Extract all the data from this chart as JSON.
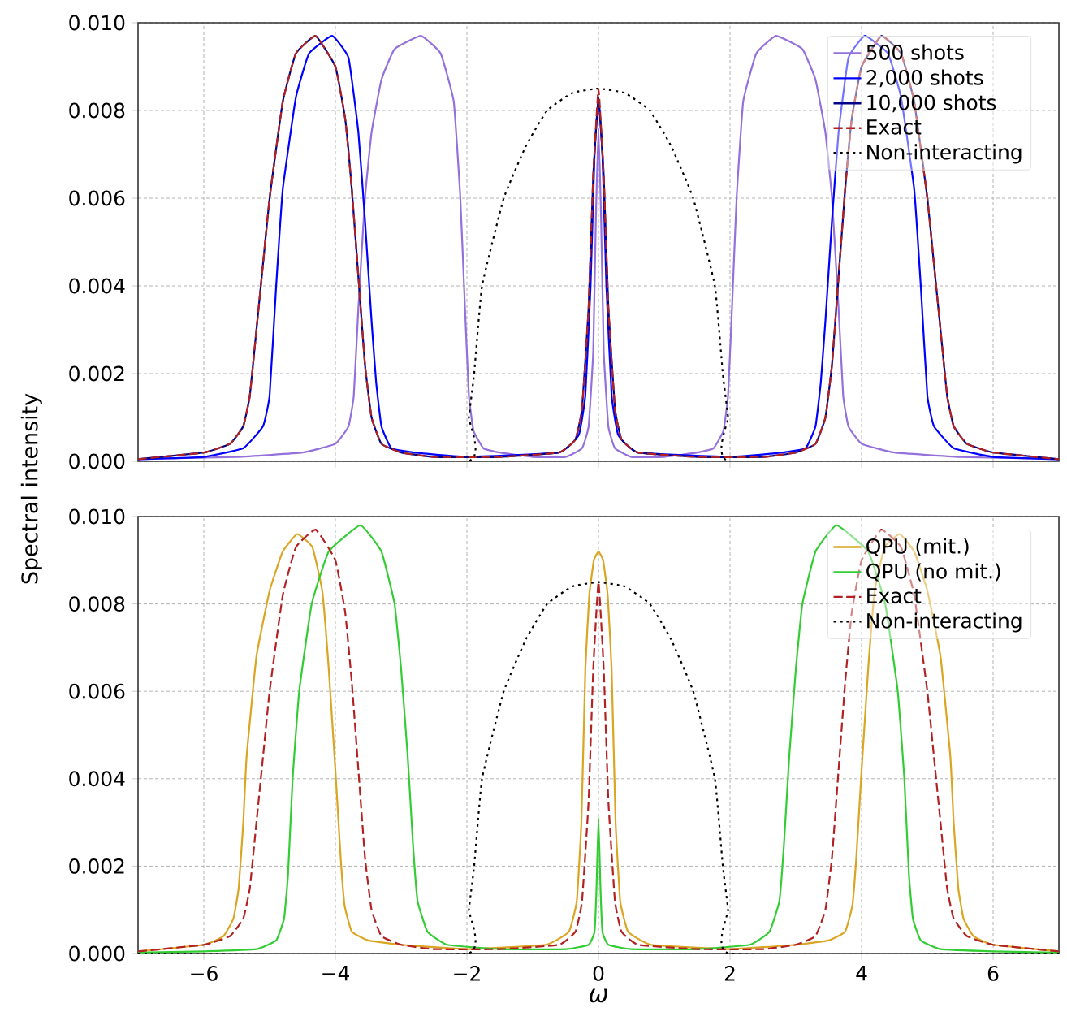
{
  "chart_data": [
    {
      "type": "line",
      "ylabel": "Spectral intensity",
      "xlim": [
        -7,
        7
      ],
      "ylim": [
        0,
        0.01
      ],
      "xticks": [
        {
          "value": -6,
          "label": null
        },
        {
          "value": -4,
          "label": null
        },
        {
          "value": -2,
          "label": null
        },
        {
          "value": 0,
          "label": null
        },
        {
          "value": 2,
          "label": null
        },
        {
          "value": 4,
          "label": null
        },
        {
          "value": 6,
          "label": null
        }
      ],
      "yticks": [
        {
          "value": 0,
          "label": "0.000"
        },
        {
          "value": 0.002,
          "label": "0.002"
        },
        {
          "value": 0.004,
          "label": "0.004"
        },
        {
          "value": 0.006,
          "label": "0.006"
        },
        {
          "value": 0.008,
          "label": "0.008"
        },
        {
          "value": 0.01,
          "label": "0.010"
        }
      ],
      "tick_labels": "y",
      "grid": true,
      "legend": "top right",
      "series": [
        {
          "name": "500 shots",
          "color": "#9370db",
          "line_style": "solid",
          "x": [
            -7,
            -5.5,
            -4.5,
            -4,
            -3.8,
            -3.72,
            -3.65,
            -3.55,
            -3.45,
            -3.3,
            -3.1,
            -2.7,
            -2.4,
            -2.2,
            -2.1,
            -2.03,
            -1.97,
            -1.9,
            -1.75,
            -1.5,
            -1,
            -0.5,
            -0.25,
            -0.15,
            -0.08,
            -0.04,
            0,
            0.04,
            0.08,
            0.15,
            0.25,
            0.5,
            1,
            1.5,
            1.75,
            1.9,
            1.97,
            2.03,
            2.1,
            2.2,
            2.4,
            2.7,
            3.1,
            3.3,
            3.45,
            3.55,
            3.65,
            3.72,
            3.8,
            4,
            4.5,
            5.5,
            7
          ],
          "values": [
            5e-05,
            0.0001,
            0.0002,
            0.0004,
            0.0008,
            0.0015,
            0.0035,
            0.006,
            0.0075,
            0.0087,
            0.0094,
            0.0097,
            0.0093,
            0.0082,
            0.006,
            0.0035,
            0.0015,
            0.0007,
            0.0003,
            0.0002,
            0.0001,
            0.0001,
            0.0003,
            0.0008,
            0.0025,
            0.0055,
            0.0076,
            0.0055,
            0.0025,
            0.0008,
            0.0003,
            0.0001,
            0.0001,
            0.0002,
            0.0003,
            0.0007,
            0.0015,
            0.0035,
            0.006,
            0.0082,
            0.0093,
            0.0097,
            0.0094,
            0.0087,
            0.0075,
            0.006,
            0.0035,
            0.0015,
            0.0008,
            0.0004,
            0.0002,
            0.0001,
            5e-05
          ]
        },
        {
          "name": "2,000 shots",
          "color": "#0000ff",
          "line_style": "solid",
          "x": [
            -7,
            -6,
            -5.4,
            -5.1,
            -5,
            -4.9,
            -4.8,
            -4.6,
            -4.4,
            -4.05,
            -3.8,
            -3.65,
            -3.55,
            -3.45,
            -3.38,
            -3.3,
            -3.15,
            -2.8,
            -2,
            -0.6,
            -0.3,
            -0.2,
            -0.12,
            -0.06,
            0,
            0.06,
            0.12,
            0.2,
            0.3,
            0.6,
            2,
            2.8,
            3.15,
            3.3,
            3.38,
            3.45,
            3.55,
            3.65,
            3.8,
            4.05,
            4.4,
            4.6,
            4.8,
            4.9,
            5,
            5.1,
            5.4,
            6,
            7
          ],
          "values": [
            5e-05,
            0.0001,
            0.0003,
            0.0008,
            0.0015,
            0.004,
            0.0062,
            0.0083,
            0.0093,
            0.0097,
            0.0092,
            0.0075,
            0.0055,
            0.0032,
            0.0018,
            0.0008,
            0.0003,
            0.0002,
            0.0001,
            0.0002,
            0.0006,
            0.0015,
            0.004,
            0.007,
            0.0083,
            0.007,
            0.004,
            0.0015,
            0.0006,
            0.0002,
            0.0001,
            0.0002,
            0.0003,
            0.0008,
            0.0018,
            0.0032,
            0.0055,
            0.0075,
            0.0092,
            0.0097,
            0.0093,
            0.0083,
            0.0062,
            0.004,
            0.0015,
            0.0008,
            0.0003,
            0.0001,
            5e-05
          ]
        },
        {
          "name": "10,000 shots",
          "color": "#00008b",
          "line_style": "solid",
          "x": [
            -7,
            -6,
            -5.6,
            -5.4,
            -5.3,
            -5.2,
            -5.1,
            -5,
            -4.8,
            -4.6,
            -4.3,
            -4,
            -3.85,
            -3.75,
            -3.65,
            -3.55,
            -3.45,
            -3.3,
            -3,
            -2.5,
            -1.5,
            -0.6,
            -0.35,
            -0.25,
            -0.15,
            -0.08,
            0,
            0.08,
            0.15,
            0.25,
            0.35,
            0.6,
            1.5,
            2.5,
            3,
            3.3,
            3.45,
            3.55,
            3.65,
            3.75,
            3.85,
            4,
            4.3,
            4.6,
            4.8,
            5,
            5.1,
            5.2,
            5.3,
            5.4,
            5.6,
            6,
            7
          ],
          "values": [
            5e-05,
            0.0002,
            0.0004,
            0.0008,
            0.0015,
            0.003,
            0.0045,
            0.006,
            0.0082,
            0.0093,
            0.0097,
            0.009,
            0.0078,
            0.0062,
            0.0042,
            0.0022,
            0.001,
            0.0004,
            0.0002,
            0.0001,
            0.0001,
            0.0002,
            0.0005,
            0.0012,
            0.0035,
            0.0065,
            0.0083,
            0.0065,
            0.0035,
            0.0012,
            0.0005,
            0.0002,
            0.0001,
            0.0001,
            0.0002,
            0.0004,
            0.001,
            0.0022,
            0.0042,
            0.0062,
            0.0078,
            0.009,
            0.0097,
            0.0093,
            0.0082,
            0.006,
            0.0045,
            0.003,
            0.0015,
            0.0008,
            0.0004,
            0.0002,
            5e-05
          ]
        },
        {
          "name": "Exact",
          "color": "#b22222",
          "line_style": "dashed",
          "x": [
            -7,
            -6,
            -5.6,
            -5.4,
            -5.3,
            -5.2,
            -5.1,
            -5,
            -4.8,
            -4.6,
            -4.3,
            -4,
            -3.85,
            -3.75,
            -3.65,
            -3.55,
            -3.45,
            -3.3,
            -3,
            -2.5,
            -1.5,
            -0.6,
            -0.35,
            -0.25,
            -0.15,
            -0.08,
            0,
            0.08,
            0.15,
            0.25,
            0.35,
            0.6,
            1.5,
            2.5,
            3,
            3.3,
            3.45,
            3.55,
            3.65,
            3.75,
            3.85,
            4,
            4.3,
            4.6,
            4.8,
            5,
            5.1,
            5.2,
            5.3,
            5.4,
            5.6,
            6,
            7
          ],
          "values": [
            5e-05,
            0.0002,
            0.0004,
            0.0008,
            0.0015,
            0.003,
            0.0045,
            0.006,
            0.0082,
            0.0093,
            0.0097,
            0.009,
            0.0078,
            0.0062,
            0.0042,
            0.0022,
            0.001,
            0.0004,
            0.0002,
            0.0001,
            0.0001,
            0.0002,
            0.0005,
            0.0012,
            0.0035,
            0.0065,
            0.0085,
            0.0065,
            0.0035,
            0.0012,
            0.0005,
            0.0002,
            0.0001,
            0.0001,
            0.0002,
            0.0004,
            0.001,
            0.0022,
            0.0042,
            0.0062,
            0.0078,
            0.009,
            0.0097,
            0.0093,
            0.0082,
            0.006,
            0.0045,
            0.003,
            0.0015,
            0.0008,
            0.0004,
            0.0002,
            5e-05
          ]
        },
        {
          "name": "Non-interacting",
          "color": "#000000",
          "line_style": "dotted",
          "x": [
            -7,
            -2,
            -1.97,
            -1.89,
            -1.77,
            -1.44,
            -1.1,
            -0.78,
            -0.4,
            0,
            0.4,
            0.78,
            1.1,
            1.44,
            1.77,
            1.89,
            1.97,
            2,
            7
          ],
          "values": [
            0,
            0,
            0.001,
            0.002,
            0.004,
            0.006,
            0.0072,
            0.008,
            0.0084,
            0.0085,
            0.0084,
            0.008,
            0.0072,
            0.006,
            0.004,
            0.002,
            0.001,
            0,
            0
          ]
        }
      ]
    },
    {
      "type": "line",
      "xlabel": "ω",
      "xlim": [
        -7,
        7
      ],
      "ylim": [
        0,
        0.01
      ],
      "xticks": [
        {
          "value": -6,
          "label": "−6"
        },
        {
          "value": -4,
          "label": "−4"
        },
        {
          "value": -2,
          "label": "−2"
        },
        0,
        2,
        4,
        6
      ],
      "yticks": [
        {
          "value": 0,
          "label": "0.000"
        },
        {
          "value": 0.002,
          "label": "0.002"
        },
        {
          "value": 0.004,
          "label": "0.004"
        },
        {
          "value": 0.006,
          "label": "0.006"
        },
        {
          "value": 0.008,
          "label": "0.008"
        },
        {
          "value": 0.01,
          "label": "0.010"
        }
      ],
      "grid": true,
      "legend": "top right",
      "series": [
        {
          "name": "QPU (mit.)",
          "color": "#daa520",
          "line_style": "solid",
          "x": [
            -7,
            -6,
            -5.7,
            -5.55,
            -5.47,
            -5.4,
            -5.35,
            -5.2,
            -5,
            -4.8,
            -4.58,
            -4.35,
            -4.2,
            -4.1,
            -4,
            -3.92,
            -3.86,
            -3.75,
            -3.5,
            -3,
            -2,
            -0.8,
            -0.45,
            -0.33,
            -0.26,
            -0.2,
            -0.14,
            -0.07,
            0,
            0.07,
            0.14,
            0.2,
            0.26,
            0.33,
            0.45,
            0.8,
            2,
            3,
            3.5,
            3.75,
            3.86,
            3.92,
            4,
            4.1,
            4.2,
            4.35,
            4.58,
            4.8,
            5,
            5.2,
            5.35,
            5.4,
            5.47,
            5.55,
            5.7,
            6,
            7
          ],
          "values": [
            5e-05,
            0.0002,
            0.0004,
            0.0008,
            0.0015,
            0.003,
            0.0045,
            0.0068,
            0.0083,
            0.0092,
            0.0096,
            0.0093,
            0.0083,
            0.0065,
            0.0042,
            0.0022,
            0.0011,
            0.0005,
            0.0003,
            0.0002,
            0.0001,
            0.0002,
            0.0005,
            0.0012,
            0.003,
            0.0065,
            0.0082,
            0.009,
            0.0092,
            0.009,
            0.0082,
            0.0065,
            0.003,
            0.0012,
            0.0005,
            0.0002,
            0.0001,
            0.0002,
            0.0003,
            0.0005,
            0.0011,
            0.0022,
            0.0042,
            0.0065,
            0.0083,
            0.0093,
            0.0096,
            0.0092,
            0.0083,
            0.0068,
            0.0045,
            0.003,
            0.0015,
            0.0008,
            0.0004,
            0.0002,
            5e-05
          ]
        },
        {
          "name": "QPU (no mit.)",
          "color": "#32cd32",
          "line_style": "solid",
          "x": [
            -7,
            -6,
            -5.2,
            -4.9,
            -4.78,
            -4.72,
            -4.65,
            -4.55,
            -4.36,
            -4.1,
            -3.62,
            -3.3,
            -3.1,
            -3,
            -2.9,
            -2.82,
            -2.75,
            -2.6,
            -2.3,
            -1.5,
            -0.5,
            -0.15,
            -0.06,
            -0.03,
            0,
            0.03,
            0.06,
            0.15,
            0.5,
            1.5,
            2.3,
            2.6,
            2.75,
            2.82,
            2.9,
            3,
            3.1,
            3.3,
            3.62,
            4.1,
            4.36,
            4.55,
            4.65,
            4.72,
            4.78,
            4.9,
            5.2,
            6,
            7
          ],
          "values": [
            2e-05,
            5e-05,
            0.0001,
            0.0003,
            0.0008,
            0.0018,
            0.004,
            0.006,
            0.008,
            0.0092,
            0.0098,
            0.0092,
            0.008,
            0.0065,
            0.0045,
            0.0025,
            0.0012,
            0.0005,
            0.0002,
            0.0001,
            0.0001,
            0.0002,
            0.0005,
            0.0015,
            0.0031,
            0.0015,
            0.0005,
            0.0002,
            0.0001,
            0.0001,
            0.0002,
            0.0005,
            0.0012,
            0.0025,
            0.0045,
            0.0065,
            0.008,
            0.0092,
            0.0098,
            0.0092,
            0.008,
            0.006,
            0.004,
            0.0018,
            0.0008,
            0.0003,
            0.0001,
            5e-05,
            2e-05
          ]
        },
        {
          "name": "Exact",
          "color": "#b22222",
          "line_style": "dashed",
          "x": [
            -7,
            -6,
            -5.6,
            -5.4,
            -5.3,
            -5.2,
            -5.1,
            -5,
            -4.8,
            -4.6,
            -4.3,
            -4,
            -3.85,
            -3.75,
            -3.65,
            -3.55,
            -3.45,
            -3.3,
            -3,
            -2.5,
            -1.5,
            -0.6,
            -0.35,
            -0.25,
            -0.15,
            -0.08,
            0,
            0.08,
            0.15,
            0.25,
            0.35,
            0.6,
            1.5,
            2.5,
            3,
            3.3,
            3.45,
            3.55,
            3.65,
            3.75,
            3.85,
            4,
            4.3,
            4.6,
            4.8,
            5,
            5.1,
            5.2,
            5.3,
            5.4,
            5.6,
            6,
            7
          ],
          "values": [
            5e-05,
            0.0002,
            0.0004,
            0.0008,
            0.0015,
            0.003,
            0.0045,
            0.006,
            0.0082,
            0.0093,
            0.0097,
            0.009,
            0.0078,
            0.0062,
            0.0042,
            0.0022,
            0.001,
            0.0004,
            0.0002,
            0.0001,
            0.0001,
            0.0002,
            0.0005,
            0.0012,
            0.0035,
            0.0065,
            0.0085,
            0.0065,
            0.0035,
            0.0012,
            0.0005,
            0.0002,
            0.0001,
            0.0001,
            0.0002,
            0.0004,
            0.001,
            0.0022,
            0.0042,
            0.0062,
            0.0078,
            0.009,
            0.0097,
            0.0093,
            0.0082,
            0.006,
            0.0045,
            0.003,
            0.0015,
            0.0008,
            0.0004,
            0.0002,
            5e-05
          ]
        },
        {
          "name": "Non-interacting",
          "color": "#000000",
          "line_style": "dotted",
          "x": [
            -7,
            -2,
            -1.97,
            -1.89,
            -1.77,
            -1.44,
            -1.1,
            -0.78,
            -0.4,
            0,
            0.4,
            0.78,
            1.1,
            1.44,
            1.77,
            1.89,
            1.97,
            2,
            7
          ],
          "values": [
            0,
            0,
            0.001,
            0.002,
            0.004,
            0.006,
            0.0072,
            0.008,
            0.0084,
            0.0085,
            0.0084,
            0.008,
            0.0072,
            0.006,
            0.004,
            0.002,
            0.001,
            0,
            0
          ]
        }
      ]
    }
  ]
}
